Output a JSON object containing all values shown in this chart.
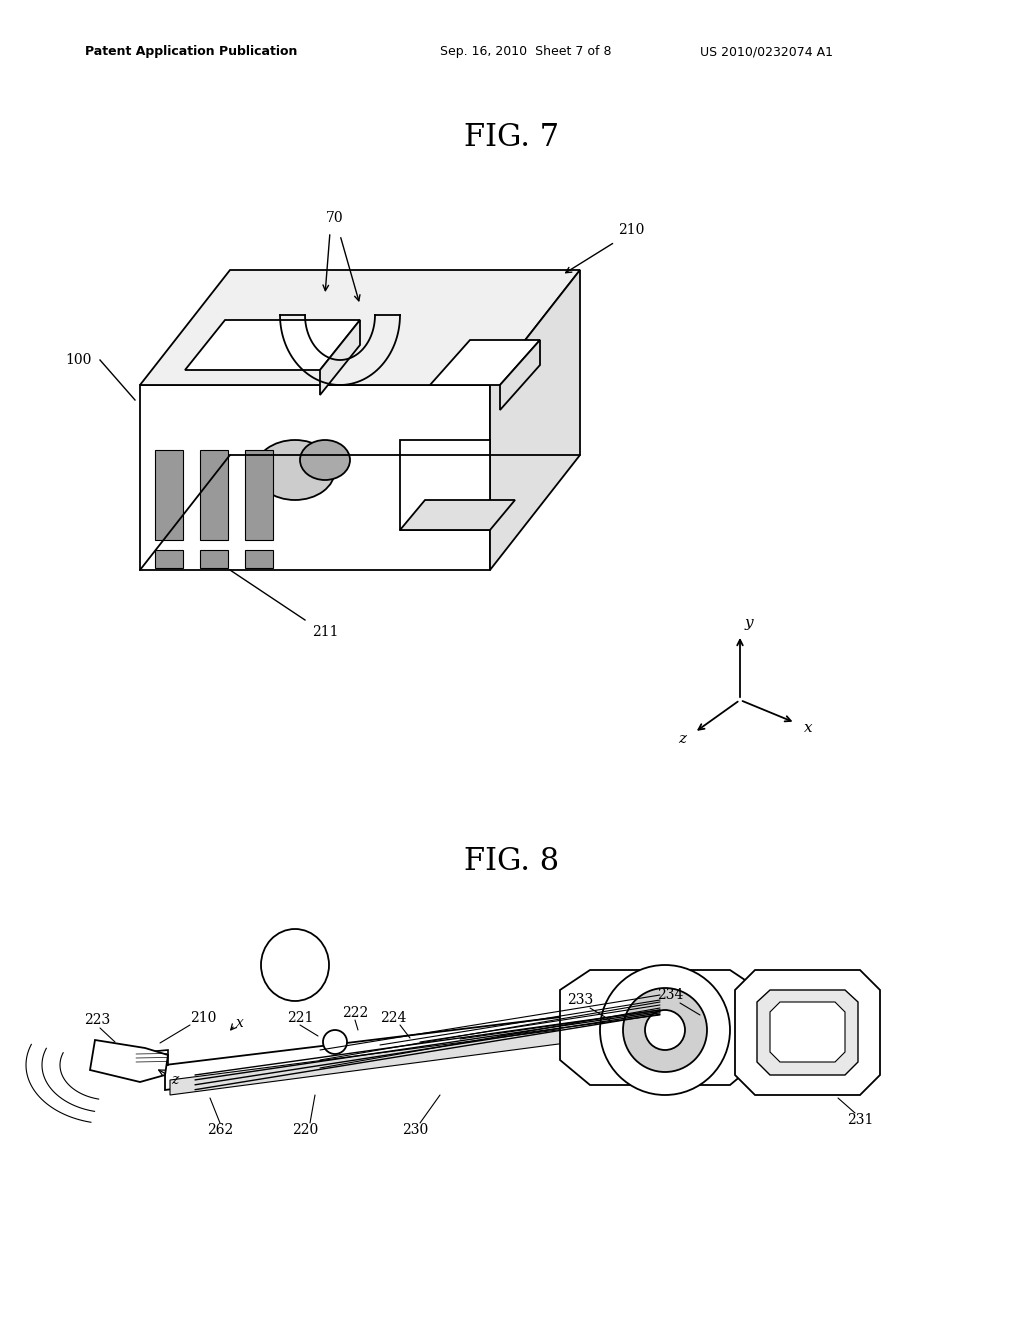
{
  "background_color": "#ffffff",
  "header_left": "Patent Application Publication",
  "header_center": "Sep. 16, 2010  Sheet 7 of 8",
  "header_right": "US 2010/0232074 A1",
  "fig7_title": "FIG. 7",
  "fig8_title": "FIG. 8",
  "fontsize_header": 9,
  "fontsize_title": 22,
  "fontsize_label": 10
}
